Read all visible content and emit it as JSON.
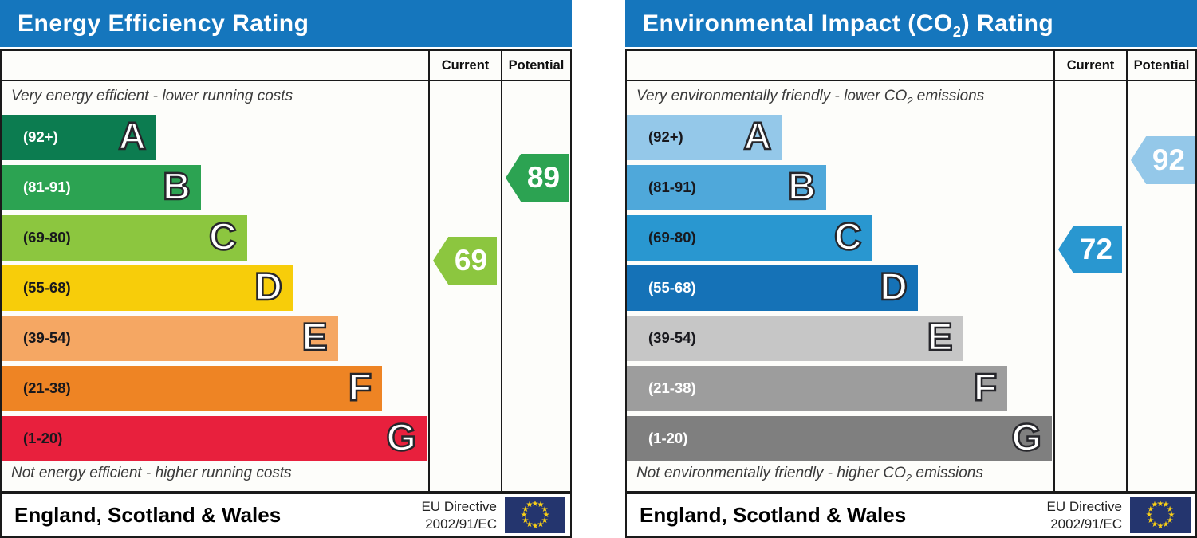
{
  "theme": {
    "header_bg": "#1576bd",
    "header_text": "#ffffff",
    "border_color": "#1a1a1a"
  },
  "eu_flag": {
    "field_color": "#24356e",
    "star_color": "#fbd116",
    "star_count": 12
  },
  "chart_data": [
    {
      "type": "epc-band-chart",
      "title": {
        "pre": "Energy Efficiency Rating",
        "sub": "",
        "post": ""
      },
      "column_headers": [
        "Current",
        "Potential"
      ],
      "top_note": {
        "pre": "Very energy efficient - lower running costs",
        "sub": "",
        "post": ""
      },
      "bottom_note": {
        "pre": "Not energy efficient - higher running costs",
        "sub": "",
        "post": ""
      },
      "bands": [
        {
          "letter": "A",
          "range_label": "(92+)",
          "min": 92,
          "max": 100,
          "color": "#0c7c50",
          "label_color": "#ffffff",
          "width_pct": 36.3
        },
        {
          "letter": "B",
          "range_label": "(81-91)",
          "min": 81,
          "max": 91,
          "color": "#2ca352",
          "label_color": "#ffffff",
          "width_pct": 46.7
        },
        {
          "letter": "C",
          "range_label": "(69-80)",
          "min": 69,
          "max": 80,
          "color": "#8cc63f",
          "label_color": "#18181d",
          "width_pct": 57.5
        },
        {
          "letter": "D",
          "range_label": "(55-68)",
          "min": 55,
          "max": 68,
          "color": "#f7cd0a",
          "label_color": "#18181d",
          "width_pct": 68.2
        },
        {
          "letter": "E",
          "range_label": "(39-54)",
          "min": 39,
          "max": 54,
          "color": "#f5a763",
          "label_color": "#18181d",
          "width_pct": 78.8
        },
        {
          "letter": "F",
          "range_label": "(21-38)",
          "min": 21,
          "max": 38,
          "color": "#ee8424",
          "label_color": "#18181d",
          "width_pct": 89.2
        },
        {
          "letter": "G",
          "range_label": "(1-20)",
          "min": 1,
          "max": 20,
          "color": "#e8203d",
          "label_color": "#18181d",
          "width_pct": 99.6
        }
      ],
      "current": {
        "value": 69,
        "band": "C",
        "color": "#8cc63f"
      },
      "potential": {
        "value": 89,
        "band": "B",
        "color": "#2ca352"
      },
      "footer": {
        "region": "England, Scotland & Wales",
        "directive": [
          "EU Directive",
          "2002/91/EC"
        ]
      }
    },
    {
      "type": "epc-band-chart",
      "title": {
        "pre": "Environmental Impact (CO",
        "sub": "2",
        "post": ") Rating"
      },
      "column_headers": [
        "Current",
        "Potential"
      ],
      "top_note": {
        "pre": "Very environmentally friendly - lower CO",
        "sub": "2",
        "post": " emissions"
      },
      "bottom_note": {
        "pre": "Not environmentally friendly - higher CO",
        "sub": "2",
        "post": " emissions"
      },
      "bands": [
        {
          "letter": "A",
          "range_label": "(92+)",
          "min": 92,
          "max": 100,
          "color": "#94c8e9",
          "label_color": "#18181d",
          "width_pct": 36.3
        },
        {
          "letter": "B",
          "range_label": "(81-91)",
          "min": 81,
          "max": 91,
          "color": "#4fa8da",
          "label_color": "#18181d",
          "width_pct": 46.7
        },
        {
          "letter": "C",
          "range_label": "(69-80)",
          "min": 69,
          "max": 80,
          "color": "#2997d0",
          "label_color": "#18181d",
          "width_pct": 57.5
        },
        {
          "letter": "D",
          "range_label": "(55-68)",
          "min": 55,
          "max": 68,
          "color": "#1572b7",
          "label_color": "#ffffff",
          "width_pct": 68.2
        },
        {
          "letter": "E",
          "range_label": "(39-54)",
          "min": 39,
          "max": 54,
          "color": "#c6c6c6",
          "label_color": "#18181d",
          "width_pct": 78.8
        },
        {
          "letter": "F",
          "range_label": "(21-38)",
          "min": 21,
          "max": 38,
          "color": "#9d9d9d",
          "label_color": "#ffffff",
          "width_pct": 89.2
        },
        {
          "letter": "G",
          "range_label": "(1-20)",
          "min": 1,
          "max": 20,
          "color": "#7f7f7f",
          "label_color": "#ffffff",
          "width_pct": 99.6
        }
      ],
      "current": {
        "value": 72,
        "band": "C",
        "color": "#2997d0"
      },
      "potential": {
        "value": 92,
        "band": "A",
        "color": "#94c8e9"
      },
      "footer": {
        "region": "England, Scotland & Wales",
        "directive": [
          "EU Directive",
          "2002/91/EC"
        ]
      }
    }
  ]
}
